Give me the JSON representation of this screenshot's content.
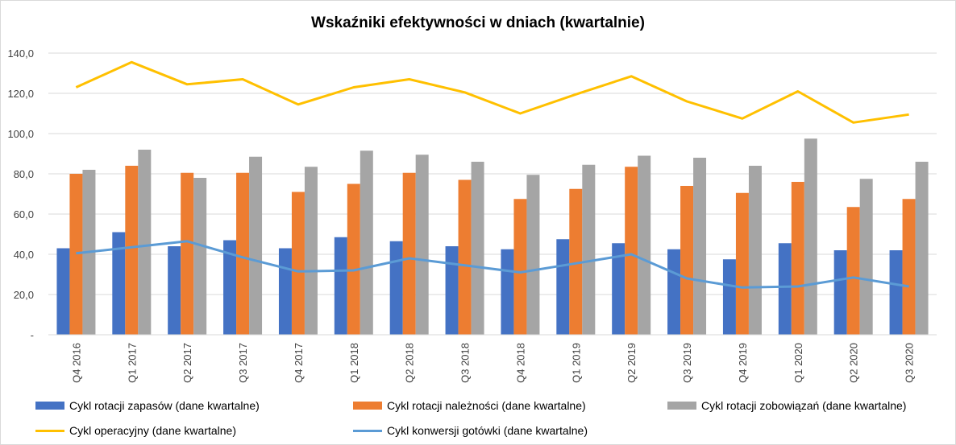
{
  "chart_data": {
    "type": "bar",
    "title": "Wskaźniki efektywności w dniach (kwartalnie)",
    "categories": [
      "Q4 2016",
      "Q1 2017",
      "Q2 2017",
      "Q3 2017",
      "Q4 2017",
      "Q1 2018",
      "Q2 2018",
      "Q3 2018",
      "Q4 2018",
      "Q1 2019",
      "Q2 2019",
      "Q3 2019",
      "Q4 2019",
      "Q1 2020",
      "Q2 2020",
      "Q3 2020"
    ],
    "yticks": [
      "-",
      "20,0",
      "40,0",
      "60,0",
      "80,0",
      "100,0",
      "120,0",
      "140,0"
    ],
    "ylim": [
      0,
      140
    ],
    "grid": "horizontal",
    "legend_position": "bottom",
    "series": [
      {
        "name": "Cykl rotacji zapasów (dane kwartalne)",
        "kind": "bar",
        "color": "#4472c4",
        "values": [
          43,
          51,
          44,
          47,
          43,
          48.5,
          46.5,
          44,
          42.5,
          47.5,
          45.5,
          42.5,
          37.5,
          45.5,
          42,
          42
        ]
      },
      {
        "name": "Cykl rotacji należności (dane kwartalne)",
        "kind": "bar",
        "color": "#ed7d31",
        "values": [
          80,
          84,
          80.5,
          80.5,
          71,
          75,
          80.5,
          77,
          67.5,
          72.5,
          83.5,
          74,
          70.5,
          76,
          63.5,
          67.5
        ]
      },
      {
        "name": "Cykl rotacji zobowiązań (dane kwartalne)",
        "kind": "bar",
        "color": "#a5a5a5",
        "values": [
          82,
          92,
          78,
          88.5,
          83.5,
          91.5,
          89.5,
          86,
          79.5,
          84.5,
          89,
          88,
          84,
          97.5,
          77.5,
          86
        ]
      },
      {
        "name": "Cykl operacyjny (dane kwartalne)",
        "kind": "line",
        "color": "#ffc000",
        "values": [
          123,
          135.5,
          124.5,
          127,
          114.5,
          123,
          127,
          120.5,
          110,
          119.5,
          128.5,
          116,
          107.5,
          121,
          105.5,
          109.5
        ]
      },
      {
        "name": "Cykl konwersji gotówki (dane kwartalne)",
        "kind": "line",
        "color": "#5b9bd5",
        "values": [
          40.5,
          43.5,
          46.5,
          38.5,
          31.5,
          32,
          38,
          34.5,
          31,
          35.5,
          40,
          28,
          23.5,
          24,
          28.5,
          24
        ]
      }
    ]
  }
}
